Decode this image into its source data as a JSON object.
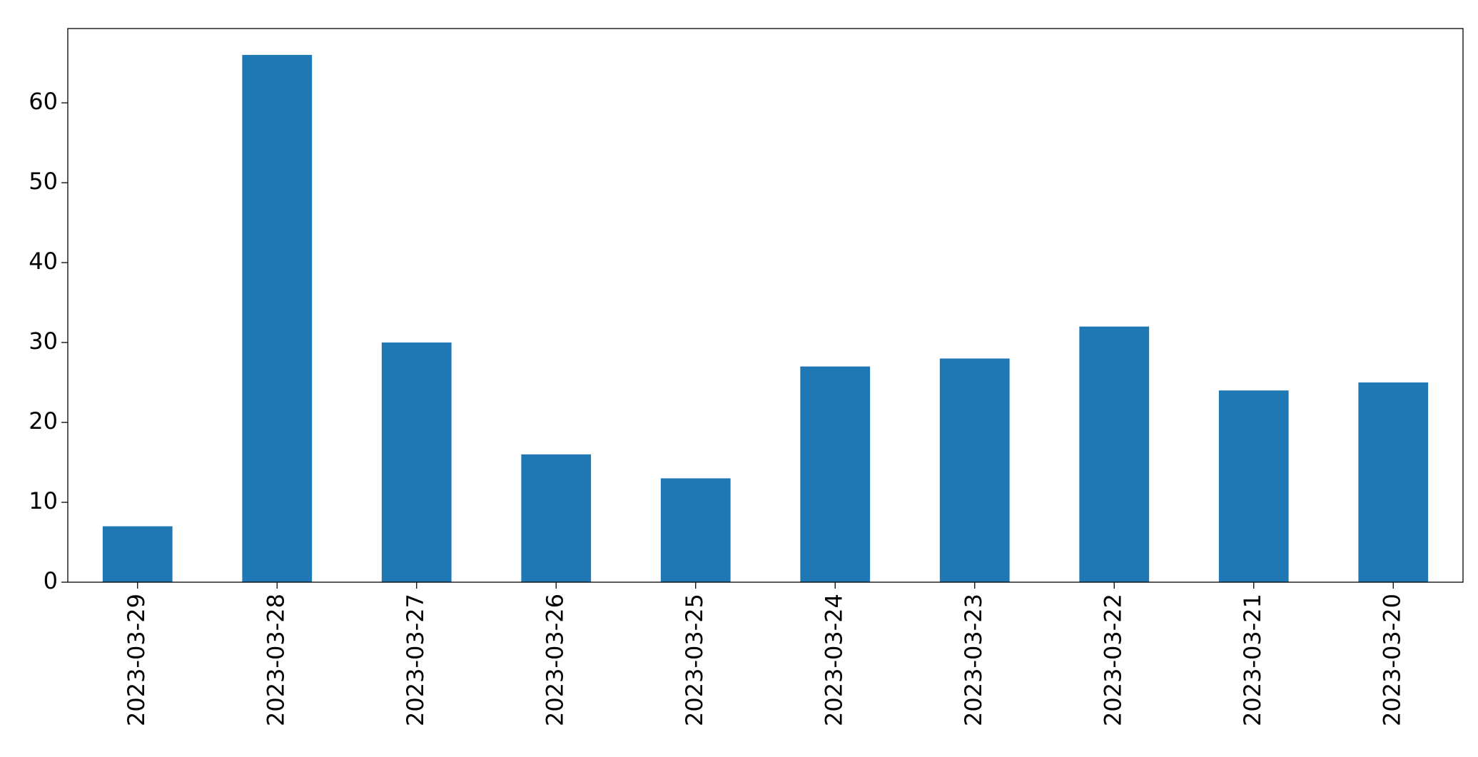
{
  "chart_data": {
    "type": "bar",
    "categories": [
      "2023-03-29",
      "2023-03-28",
      "2023-03-27",
      "2023-03-26",
      "2023-03-25",
      "2023-03-24",
      "2023-03-23",
      "2023-03-22",
      "2023-03-21",
      "2023-03-20"
    ],
    "values": [
      7,
      66,
      30,
      16,
      13,
      27,
      28,
      32,
      24,
      25
    ],
    "color": "#1f77b4",
    "ylim": [
      0,
      69.3
    ],
    "yticks": [
      0,
      10,
      20,
      30,
      40,
      50,
      60
    ],
    "grid": false
  }
}
